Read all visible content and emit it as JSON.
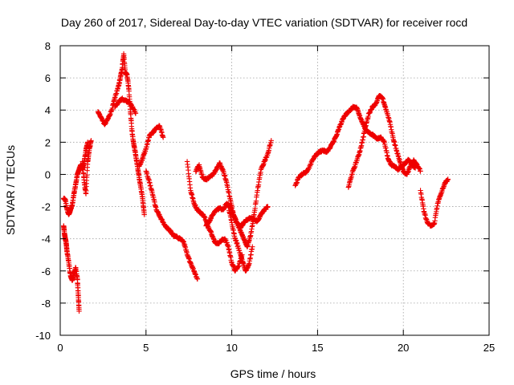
{
  "chart_data": {
    "type": "scatter",
    "title": "Day 260 of 2017, Sidereal Day-to-day VTEC variation (SDTVAR) for receiver rocd",
    "xlabel": "GPS time / hours",
    "ylabel": "SDTVAR / TECUs",
    "xlim": [
      0,
      25
    ],
    "ylim": [
      -10,
      8
    ],
    "xticks": [
      0,
      5,
      10,
      15,
      20,
      25
    ],
    "yticks": [
      -10,
      -8,
      -6,
      -4,
      -2,
      0,
      2,
      4,
      6,
      8
    ],
    "grid": true,
    "marker": "+",
    "color": "#ee0000",
    "series": [
      {
        "name": "seg1a",
        "x": [
          0.2,
          0.3,
          0.4,
          0.5,
          0.6,
          0.7,
          0.8,
          0.9,
          1.0,
          1.1,
          1.2,
          1.3,
          1.4,
          1.5,
          1.6
        ],
        "y": [
          -1.5,
          -1.6,
          -2.2,
          -2.5,
          -2.2,
          -1.9,
          -1.2,
          -0.6,
          0.0,
          0.3,
          0.6,
          0.3,
          0.8,
          1.5,
          2.0
        ]
      },
      {
        "name": "seg1b",
        "x": [
          0.2,
          0.25,
          0.3,
          0.35,
          0.4,
          0.5,
          0.6,
          0.7,
          0.8,
          0.9,
          1.0,
          1.05,
          1.1
        ],
        "y": [
          -3.2,
          -3.7,
          -4.0,
          -4.3,
          -4.8,
          -5.5,
          -6.3,
          -6.6,
          -6.2,
          -5.8,
          -6.5,
          -7.5,
          -8.5
        ]
      },
      {
        "name": "seg1c",
        "x": [
          1.3,
          1.4,
          1.5,
          1.6,
          1.7,
          1.8
        ],
        "y": [
          0.8,
          -0.5,
          -1.2,
          0.8,
          1.6,
          2.1
        ]
      },
      {
        "name": "seg2",
        "x": [
          2.2,
          2.4,
          2.6,
          2.8,
          3.0,
          3.2,
          3.4,
          3.5,
          3.6,
          3.7,
          3.8,
          3.9,
          4.0,
          4.1,
          4.2,
          4.3,
          4.4,
          4.5,
          4.6,
          4.7,
          4.8,
          4.9
        ],
        "y": [
          3.9,
          3.5,
          3.1,
          3.5,
          4.0,
          4.8,
          5.5,
          6.0,
          6.5,
          7.5,
          6.3,
          6.2,
          5.3,
          3.8,
          2.5,
          1.8,
          1.2,
          0.5,
          -0.2,
          -0.8,
          -1.5,
          -2.5
        ]
      },
      {
        "name": "seg2b",
        "x": [
          3.2,
          3.4,
          3.6,
          3.8,
          4.0,
          4.2,
          4.4
        ],
        "y": [
          4.2,
          4.5,
          4.7,
          4.6,
          4.5,
          4.2,
          3.8
        ]
      },
      {
        "name": "seg3",
        "x": [
          4.6,
          4.8,
          5.0,
          5.2,
          5.4,
          5.6,
          5.8,
          6.0
        ],
        "y": [
          0.5,
          1.0,
          1.6,
          2.4,
          2.6,
          2.9,
          3.0,
          2.3
        ]
      },
      {
        "name": "seg4",
        "x": [
          5.0,
          5.2,
          5.4,
          5.6,
          5.8,
          6.0,
          6.2,
          6.4,
          6.6,
          6.8,
          7.0,
          7.2,
          7.4,
          7.6,
          7.8,
          8.0
        ],
        "y": [
          0.2,
          -0.5,
          -1.3,
          -2.2,
          -2.6,
          -3.0,
          -3.3,
          -3.5,
          -3.8,
          -3.9,
          -4.0,
          -4.2,
          -5.0,
          -5.5,
          -6.0,
          -6.5
        ]
      },
      {
        "name": "seg5",
        "x": [
          7.4,
          7.6,
          7.8,
          8.0,
          8.2,
          8.4,
          8.6,
          8.8,
          9.0,
          9.2,
          9.4,
          9.6,
          9.8,
          10.0,
          10.2,
          10.4,
          10.6
        ],
        "y": [
          0.8,
          -1.0,
          -1.8,
          -2.2,
          -2.4,
          -2.6,
          -3.2,
          -3.6,
          -4.2,
          -4.3,
          -4.1,
          -4.0,
          -4.5,
          -5.5,
          -6.0,
          -5.7,
          -5.0
        ]
      },
      {
        "name": "seg6",
        "x": [
          7.9,
          8.1,
          8.3,
          8.5,
          8.7,
          8.9,
          9.1,
          9.3,
          9.5,
          9.7,
          9.9,
          10.1,
          10.3,
          10.5,
          10.7,
          10.9,
          11.1,
          11.3,
          11.5,
          11.7,
          11.9,
          12.1,
          12.3
        ],
        "y": [
          0.2,
          0.6,
          -0.2,
          -0.3,
          -0.2,
          0.0,
          0.3,
          0.7,
          0.2,
          -0.5,
          -1.5,
          -2.5,
          -3.0,
          -3.5,
          -4.0,
          -4.5,
          -3.8,
          -2.5,
          -1.0,
          0.3,
          0.8,
          1.3,
          2.1
        ]
      },
      {
        "name": "seg7",
        "x": [
          8.5,
          8.7,
          8.9,
          9.1,
          9.3,
          9.5,
          9.7,
          9.9,
          10.1,
          10.3,
          10.5,
          10.7,
          10.9,
          11.1,
          11.3,
          11.5,
          11.7,
          11.9,
          12.1
        ],
        "y": [
          -3.2,
          -2.9,
          -2.5,
          -2.2,
          -2.1,
          -2.2,
          -1.8,
          -2.0,
          -2.5,
          -3.0,
          -3.3,
          -3.0,
          -2.8,
          -2.7,
          -2.8,
          -2.9,
          -2.5,
          -2.2,
          -2.0
        ]
      },
      {
        "name": "seg8",
        "x": [
          9.8,
          10.0,
          10.2,
          10.4,
          10.6,
          10.8,
          11.0,
          11.2
        ],
        "y": [
          -2.0,
          -3.0,
          -4.0,
          -4.6,
          -5.3,
          -6.0,
          -5.6,
          -4.5
        ]
      },
      {
        "name": "seg9",
        "x": [
          13.7,
          13.9,
          14.1,
          14.3,
          14.5,
          14.7,
          14.9,
          15.1,
          15.3,
          15.5,
          15.7,
          15.9,
          16.1,
          16.3,
          16.5,
          16.7,
          16.9,
          17.1,
          17.3,
          17.5,
          17.7,
          17.9,
          18.1,
          18.3,
          18.5,
          18.7,
          18.9,
          19.1,
          19.3,
          19.5,
          19.7,
          19.9,
          20.1,
          20.3,
          20.5,
          20.7
        ],
        "y": [
          -0.7,
          -0.2,
          0.0,
          0.1,
          0.4,
          0.9,
          1.2,
          1.4,
          1.5,
          1.4,
          1.6,
          2.0,
          2.4,
          3.0,
          3.5,
          3.8,
          4.0,
          4.2,
          4.1,
          3.5,
          3.0,
          2.7,
          2.5,
          2.4,
          2.2,
          2.3,
          2.0,
          1.0,
          0.6,
          0.5,
          0.3,
          0.5,
          0.7,
          0.9,
          0.6,
          0.4
        ]
      },
      {
        "name": "seg10",
        "x": [
          16.8,
          17.0,
          17.2,
          17.4,
          17.6,
          17.8,
          18.0,
          18.2,
          18.4,
          18.6,
          18.8,
          19.0,
          19.2,
          19.4,
          19.6,
          19.8,
          20.0,
          20.2,
          20.4,
          20.6,
          20.8,
          21.0
        ],
        "y": [
          -0.8,
          0.0,
          0.6,
          1.2,
          2.0,
          3.0,
          3.8,
          4.2,
          4.4,
          4.9,
          4.7,
          4.0,
          3.3,
          2.3,
          1.5,
          0.8,
          0.2,
          0.0,
          0.5,
          0.9,
          0.6,
          0.2
        ]
      },
      {
        "name": "seg11",
        "x": [
          21.0,
          21.2,
          21.4,
          21.6,
          21.8,
          22.0,
          22.2,
          22.4,
          22.6
        ],
        "y": [
          -1.0,
          -2.3,
          -3.0,
          -3.2,
          -3.1,
          -1.8,
          -1.2,
          -0.6,
          -0.3
        ]
      }
    ]
  }
}
